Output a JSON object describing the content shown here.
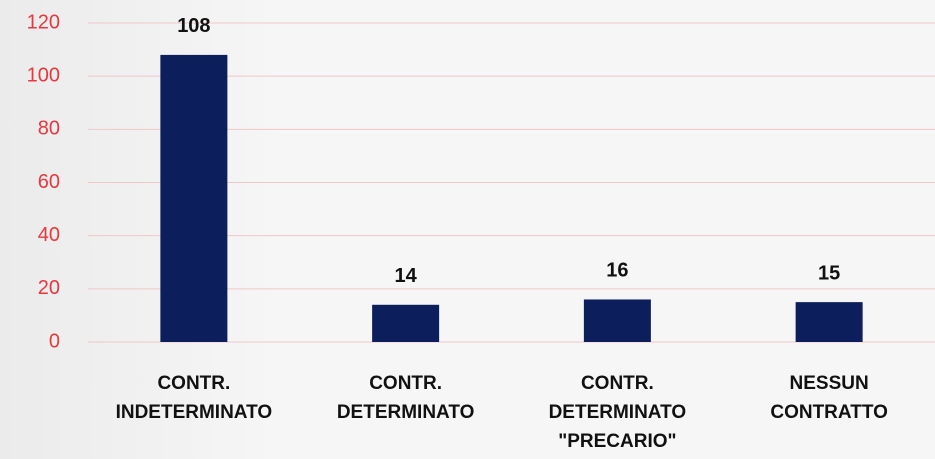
{
  "chart_data": {
    "type": "bar",
    "categories": [
      [
        "CONTR.",
        "INDETERMINATO"
      ],
      [
        "CONTR.",
        "DETERMINATO"
      ],
      [
        "CONTR.",
        "DETERMINATO",
        "\"PRECARIO\""
      ],
      [
        "NESSUN",
        "CONTRATTO"
      ]
    ],
    "values": [
      108,
      14,
      16,
      15
    ],
    "color": "#0c1f5c",
    "ylim": [
      0,
      120
    ],
    "yticks": [
      0,
      20,
      40,
      60,
      80,
      100,
      120
    ],
    "grid": true,
    "tick_color": "#e8383d",
    "grid_color": "#f3c6c8"
  }
}
